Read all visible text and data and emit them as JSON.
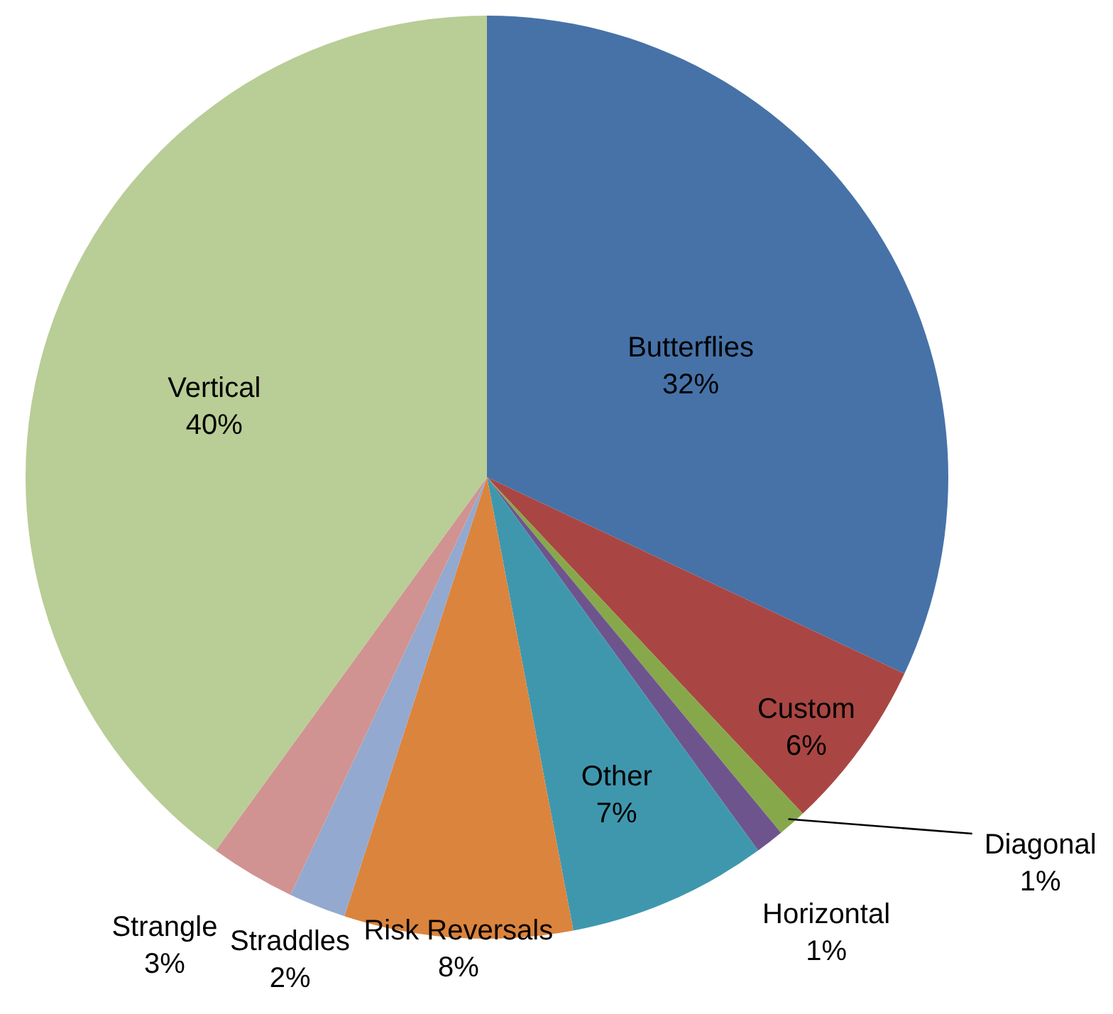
{
  "chart_data": {
    "type": "pie",
    "categories": [
      "Butterflies",
      "Custom",
      "Diagonal",
      "Horizontal",
      "Other",
      "Risk Reversals",
      "Straddles",
      "Strangle",
      "Vertical"
    ],
    "values": [
      32,
      6,
      1,
      1,
      7,
      8,
      2,
      3,
      40
    ],
    "value_labels": [
      "32%",
      "6%",
      "1%",
      "1%",
      "7%",
      "8%",
      "2%",
      "3%",
      "40%"
    ],
    "colors": [
      "#4672a8",
      "#a94643",
      "#87a84a",
      "#6e548d",
      "#3f97ae",
      "#db843d",
      "#93a9cf",
      "#d09392",
      "#b9cd96"
    ]
  }
}
